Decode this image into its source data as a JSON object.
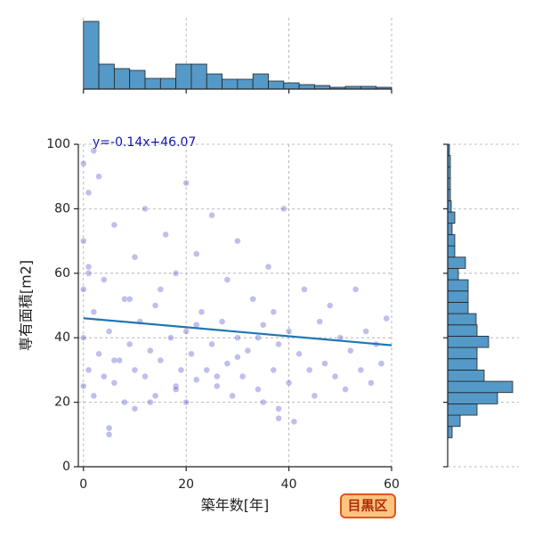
{
  "chart_data": {
    "type": "jointplot",
    "annotation": "y=-0.14x+46.07",
    "x_label": "築年数[年]",
    "y_label": "専有面積[m2]",
    "badge": "目黒区",
    "color": "#2a2abf",
    "hist_color": "#5499c7",
    "line_color": "#1f77b4",
    "grid": true,
    "xlim": [
      -1,
      60
    ],
    "ylim": [
      0,
      100
    ],
    "xticks": [
      0,
      20,
      40,
      60
    ],
    "yticks": [
      0,
      20,
      40,
      60,
      80,
      100
    ],
    "regression": {
      "slope": -0.14,
      "intercept": 46.07
    },
    "x": [
      0,
      0,
      0,
      0,
      0,
      1,
      1,
      1,
      2,
      2,
      3,
      3,
      4,
      4,
      5,
      5,
      6,
      6,
      7,
      8,
      8,
      9,
      10,
      10,
      11,
      12,
      12,
      13,
      14,
      15,
      15,
      16,
      17,
      18,
      18,
      19,
      20,
      20,
      20,
      21,
      22,
      22,
      23,
      24,
      25,
      25,
      26,
      27,
      28,
      28,
      29,
      30,
      30,
      31,
      32,
      33,
      34,
      35,
      35,
      36,
      37,
      37,
      38,
      38,
      39,
      40,
      40,
      41,
      42,
      43,
      44,
      45,
      46,
      47,
      48,
      49,
      50,
      51,
      52,
      53,
      54,
      55,
      56,
      57,
      58,
      59,
      2,
      6,
      10,
      14,
      18,
      22,
      26,
      30,
      34,
      38,
      1,
      5,
      9,
      13
    ],
    "y": [
      25,
      40,
      55,
      70,
      94,
      30,
      62,
      85,
      22,
      48,
      35,
      90,
      28,
      58,
      42,
      12,
      26,
      75,
      33,
      52,
      20,
      38,
      65,
      30,
      45,
      28,
      80,
      36,
      22,
      55,
      33,
      72,
      40,
      25,
      60,
      30,
      20,
      42,
      88,
      35,
      27,
      66,
      48,
      30,
      38,
      78,
      25,
      45,
      32,
      58,
      22,
      40,
      70,
      28,
      36,
      52,
      24,
      44,
      20,
      62,
      30,
      48,
      15,
      38,
      80,
      26,
      42,
      14,
      35,
      55,
      30,
      22,
      45,
      32,
      50,
      28,
      40,
      24,
      36,
      55,
      30,
      42,
      26,
      38,
      32,
      46,
      98,
      33,
      18,
      50,
      24,
      44,
      28,
      34,
      40,
      18,
      60,
      10,
      52,
      20
    ],
    "x_hist": {
      "bins": [
        0,
        3,
        6,
        9,
        12,
        15,
        18,
        21,
        24,
        27,
        30,
        33,
        36,
        39,
        42,
        45,
        48,
        51,
        54,
        57,
        60
      ],
      "counts": [
        76,
        28,
        23,
        21,
        12,
        12,
        28,
        28,
        17,
        11,
        11,
        17,
        9,
        7,
        5,
        4,
        2,
        3,
        3,
        2
      ],
      "count_lim": [
        0,
        80
      ]
    },
    "y_hist": {
      "bins": [
        9,
        12.5,
        16,
        19.5,
        23,
        26.5,
        30,
        33.5,
        37,
        40.5,
        44,
        47.5,
        51,
        54.5,
        58,
        61.5,
        65,
        68.5,
        72,
        75.5,
        79,
        82.5,
        86,
        89.5,
        93,
        96.5,
        100
      ],
      "counts": [
        5,
        14,
        33,
        56,
        73,
        41,
        33,
        33,
        46,
        33,
        32,
        23,
        23,
        23,
        12,
        20,
        8,
        8,
        5,
        8,
        4,
        3,
        3,
        3,
        3,
        2
      ],
      "count_lim": [
        0,
        80
      ]
    }
  }
}
